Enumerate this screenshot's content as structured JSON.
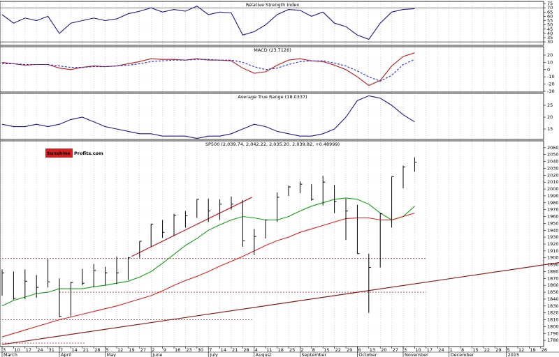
{
  "chart_data": [
    {
      "type": "line",
      "title": "Relative Strength Index",
      "ylim": [
        26,
        77.5
      ],
      "yticks": [
        30,
        35,
        40,
        45,
        50,
        55,
        60,
        65,
        70,
        75
      ],
      "ref_lines": [
        70,
        30
      ],
      "color": "#1a1a8c",
      "values": [
        62,
        52,
        58,
        55,
        60,
        40,
        52,
        55,
        58,
        55,
        57,
        63,
        66,
        70,
        65,
        68,
        66,
        72,
        62,
        65,
        64,
        38,
        42,
        50,
        62,
        68,
        67,
        60,
        65,
        52,
        48,
        38,
        33,
        52,
        65,
        68,
        69,
        null,
        null,
        null,
        null,
        null,
        null,
        null,
        null,
        null,
        null,
        null
      ]
    },
    {
      "type": "line",
      "title": "MACD (23.7126)",
      "ylim": [
        -31,
        31.5
      ],
      "yticks": [
        20,
        10,
        0,
        -10,
        -20,
        -30
      ],
      "series": [
        {
          "color": "#c01818",
          "dash": false,
          "values": [
            10,
            8,
            6,
            7,
            7,
            2,
            0,
            3,
            5,
            4,
            5,
            8,
            11,
            15,
            14,
            14,
            13,
            15,
            13,
            13,
            12,
            2,
            -5,
            -3,
            6,
            13,
            15,
            12,
            11,
            6,
            0,
            -10,
            -22,
            -15,
            5,
            18,
            23,
            null,
            null,
            null,
            null,
            null,
            null,
            null,
            null,
            null,
            null,
            null
          ]
        },
        {
          "color": "#2030d0",
          "dash": true,
          "values": [
            8,
            8,
            7,
            7,
            7,
            5,
            3,
            3,
            4,
            4,
            5,
            6,
            8,
            11,
            12,
            13,
            13,
            14,
            14,
            13,
            13,
            10,
            4,
            0,
            2,
            7,
            11,
            12,
            12,
            9,
            5,
            -2,
            -10,
            -16,
            -8,
            7,
            14,
            null,
            null,
            null,
            null,
            null,
            null,
            null,
            null,
            null,
            null,
            null
          ]
        }
      ]
    },
    {
      "type": "line",
      "title": "Average True Range (18.0337)",
      "ylim": [
        10.6,
        30
      ],
      "yticks": [
        25,
        20,
        15
      ],
      "color": "#1a1a8c",
      "values": [
        17,
        16,
        16,
        17,
        16,
        17,
        19,
        20,
        18,
        16,
        15,
        14,
        13,
        13,
        12,
        12,
        12,
        11,
        12,
        12,
        13,
        15,
        17,
        16,
        14,
        13,
        12,
        12,
        13,
        15,
        20,
        27,
        29,
        28,
        25,
        21,
        18,
        null,
        null,
        null,
        null,
        null,
        null,
        null,
        null,
        null,
        null,
        null
      ]
    },
    {
      "type": "ohlc",
      "title": "SP500 (2,039.74, 2,042.22, 2,035.20, 2,039.82, +0.48999)",
      "logo": [
        "Sunshine",
        "Profits.com"
      ],
      "ylim": [
        1771,
        2070
      ],
      "yticks": [
        1780,
        1790,
        1800,
        1810,
        1820,
        1830,
        1840,
        1850,
        1860,
        1870,
        1880,
        1890,
        1900,
        1910,
        1920,
        1930,
        1940,
        1950,
        1960,
        1970,
        1980,
        1990,
        2000,
        2010,
        2020,
        2030,
        2040,
        2050,
        2060
      ],
      "categories": [
        "3",
        "10",
        "17",
        "24",
        "31",
        "7",
        "14",
        "21",
        "28",
        "5",
        "12",
        "19",
        "27",
        "2",
        "9",
        "16",
        "23",
        "30",
        "7",
        "14",
        "21",
        "28",
        "4",
        "11",
        "18",
        "25",
        "2",
        "8",
        "15",
        "22",
        "29",
        "6",
        "13",
        "20",
        "27",
        "3",
        "10",
        "17",
        "24",
        "1",
        "8",
        "15",
        "22",
        "29",
        "5",
        "12",
        "19",
        "26"
      ],
      "month_labels": [
        "March",
        null,
        null,
        null,
        null,
        "April",
        null,
        null,
        null,
        "May",
        null,
        null,
        null,
        "June",
        null,
        null,
        null,
        null,
        "July",
        null,
        null,
        null,
        "August",
        null,
        null,
        null,
        "September",
        null,
        null,
        null,
        null,
        "October",
        null,
        null,
        null,
        "November",
        null,
        null,
        null,
        "December",
        null,
        null,
        null,
        null,
        "2015",
        null,
        null,
        null
      ],
      "high": [
        1883,
        1880,
        1883,
        1875,
        1898,
        1870,
        1865,
        1884,
        1891,
        1887,
        1902,
        1901,
        1924,
        1949,
        1955,
        1964,
        1968,
        1985,
        1986,
        1985,
        1989,
        1984,
        1942,
        1956,
        1995,
        2005,
        2011,
        2007,
        2019,
        2006,
        1986,
        1977,
        1906,
        1965,
        2018,
        2034,
        2046,
        null,
        null,
        null,
        null,
        null,
        null,
        null,
        null,
        null,
        null,
        null
      ],
      "low": [
        1845,
        1839,
        1840,
        1842,
        1857,
        1814,
        1815,
        1860,
        1857,
        1860,
        1862,
        1868,
        1900,
        1916,
        1929,
        1932,
        1944,
        1958,
        1952,
        1955,
        1970,
        1916,
        1904,
        1928,
        1952,
        1990,
        1994,
        1983,
        1976,
        1965,
        1926,
        1906,
        1820,
        1886,
        1944,
        2001,
        2025,
        null,
        null,
        null,
        null,
        null,
        null,
        null,
        null,
        null,
        null,
        null
      ],
      "close": [
        1878,
        1841,
        1866,
        1857,
        1865,
        1815,
        1864,
        1863,
        1881,
        1878,
        1878,
        1900,
        1924,
        1949,
        1937,
        1962,
        1961,
        1985,
        1968,
        1978,
        1978,
        1925,
        1931,
        1955,
        1988,
        2003,
        2007,
        1985,
        2010,
        1982,
        1968,
        1906,
        1886,
        1964,
        2018,
        2032,
        2039,
        null,
        null,
        null,
        null,
        null,
        null,
        null,
        null,
        null,
        null,
        null
      ],
      "bar_color": "#000000",
      "series": [
        {
          "color": "#10a010",
          "values": [
            1830,
            1838,
            1843,
            1848,
            1850,
            1855,
            1855,
            1855,
            1858,
            1860,
            1863,
            1866,
            1872,
            1880,
            1892,
            1905,
            1918,
            1928,
            1940,
            1948,
            1955,
            1960,
            1958,
            1955,
            1955,
            1960,
            1968,
            1975,
            1980,
            1985,
            1987,
            1985,
            1978,
            1965,
            1955,
            1960,
            1975,
            null,
            null,
            null,
            null,
            null,
            null,
            null,
            null,
            null,
            null,
            null
          ]
        },
        {
          "color": "#e02020",
          "values": [
            1785,
            1790,
            1795,
            1800,
            1805,
            1810,
            1814,
            1818,
            1822,
            1826,
            1830,
            1835,
            1840,
            1845,
            1852,
            1860,
            1867,
            1873,
            1880,
            1888,
            1895,
            1902,
            1910,
            1918,
            1925,
            1930,
            1937,
            1942,
            1947,
            1952,
            1957,
            1958,
            1958,
            1955,
            1955,
            1960,
            1965,
            null,
            null,
            null,
            null,
            null,
            null,
            null,
            null,
            null,
            null,
            null
          ]
        }
      ],
      "hlines": [
        {
          "value": 1899,
          "from": 0,
          "to": 37
        },
        {
          "value": 1850,
          "from": 5,
          "to": 37
        },
        {
          "value": 1810,
          "from": 0,
          "to": 21.8
        },
        {
          "value": 1776,
          "from": 0,
          "to": 7.2
        }
      ],
      "trend_lines": [
        {
          "from": [
            0,
            1774
          ],
          "to": [
            48.6,
            1893
          ],
          "color": "#8b1a1a"
        },
        {
          "from": [
            11.3,
            1902
          ],
          "to": [
            21.8,
            1988
          ],
          "color": "#c01818"
        }
      ]
    }
  ]
}
